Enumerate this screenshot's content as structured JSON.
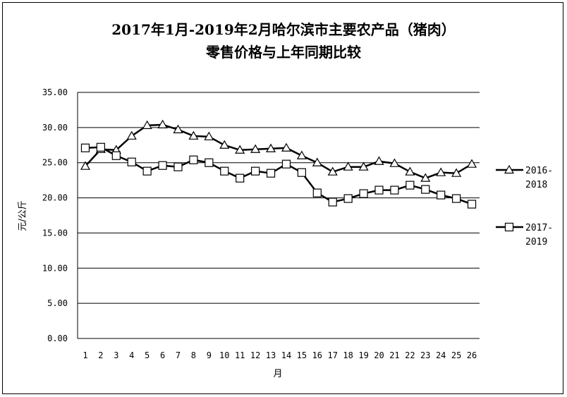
{
  "chart_data": {
    "type": "line",
    "title_line1": "2017年1月-2019年2月哈尔滨市主要农产品（猪肉）",
    "title_line2": "零售价格与上年同期比较",
    "xlabel": "月",
    "ylabel": "元/公斤",
    "ylim": [
      0,
      35
    ],
    "yticks": [
      "0.00",
      "5.00",
      "10.00",
      "15.00",
      "20.00",
      "25.00",
      "30.00",
      "35.00"
    ],
    "x": [
      "1",
      "2",
      "3",
      "4",
      "5",
      "6",
      "7",
      "8",
      "9",
      "10",
      "11",
      "12",
      "13",
      "14",
      "15",
      "16",
      "17",
      "18",
      "19",
      "20",
      "21",
      "22",
      "23",
      "24",
      "25",
      "26"
    ],
    "grid": true,
    "legend_position": "right",
    "series": [
      {
        "name_line1": "2016-",
        "name_line2": "2018",
        "marker": "triangle",
        "values": [
          24.5,
          26.9,
          26.8,
          28.8,
          30.3,
          30.4,
          29.7,
          28.8,
          28.7,
          27.5,
          26.8,
          26.9,
          27.0,
          27.1,
          26.0,
          25.0,
          23.7,
          24.4,
          24.4,
          25.2,
          24.9,
          23.7,
          22.8,
          23.6,
          23.5,
          24.8
        ]
      },
      {
        "name_line1": "2017-",
        "name_line2": "2019",
        "marker": "square",
        "values": [
          27.1,
          27.2,
          26.0,
          25.1,
          23.8,
          24.6,
          24.4,
          25.4,
          25.0,
          23.8,
          22.8,
          23.8,
          23.5,
          24.8,
          23.6,
          20.7,
          19.4,
          19.9,
          20.6,
          21.1,
          21.1,
          21.8,
          21.2,
          20.4,
          19.9,
          19.1
        ]
      }
    ]
  }
}
